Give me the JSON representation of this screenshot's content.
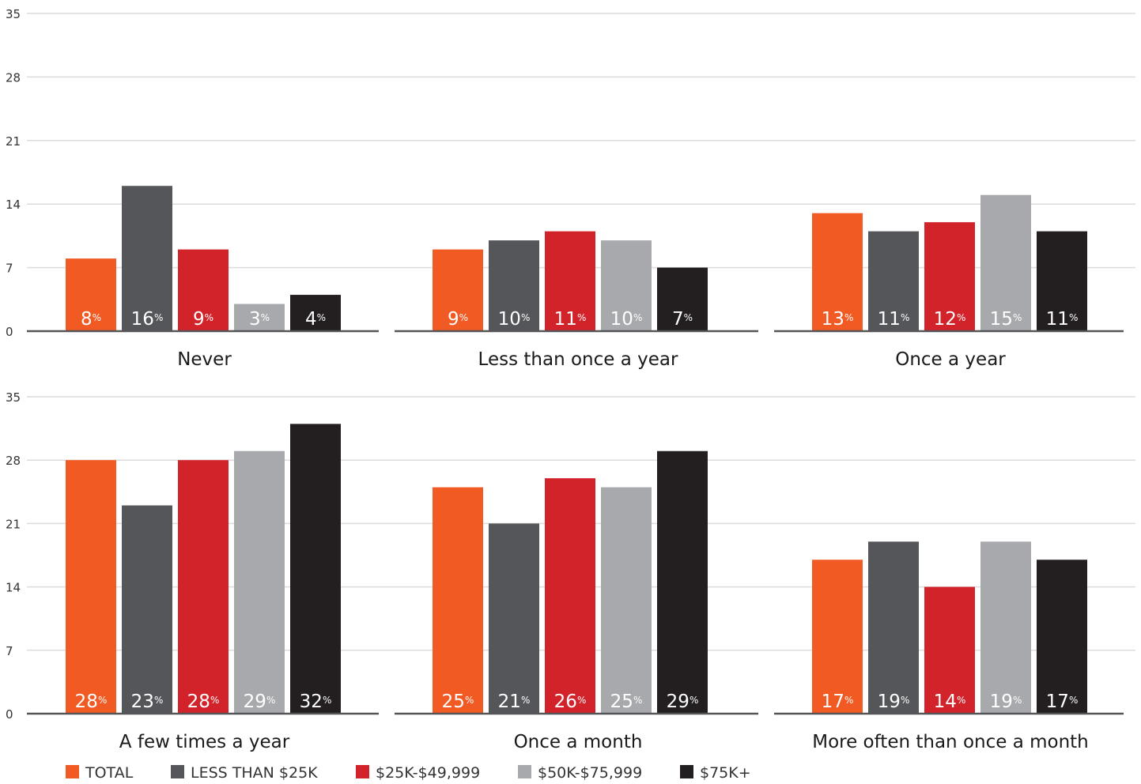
{
  "chart_data": {
    "type": "bar",
    "y_ticks": [
      "0",
      "7",
      "14",
      "21",
      "28",
      "35"
    ],
    "ylim": [
      0,
      35
    ],
    "grid": true,
    "value_suffix": "%",
    "legend_position": "bottom",
    "series": [
      {
        "name": "TOTAL",
        "color": "#f15a22"
      },
      {
        "name": "LESS THAN $25K",
        "color": "#54565a"
      },
      {
        "name": "$25K-$49,999",
        "color": "#d3232a"
      },
      {
        "name": "$50K-$75,999",
        "color": "#a7a9ac"
      },
      {
        "name": "$75K+",
        "color": "#231f20"
      }
    ],
    "groups": [
      {
        "label": "Never",
        "values": [
          8,
          16,
          9,
          3,
          4
        ]
      },
      {
        "label": "Less than once a year",
        "values": [
          9,
          10,
          11,
          10,
          7
        ]
      },
      {
        "label": "Once a year",
        "values": [
          13,
          11,
          12,
          15,
          11
        ]
      },
      {
        "label": "A few times a year",
        "values": [
          28,
          23,
          28,
          29,
          32
        ]
      },
      {
        "label": "Once a month",
        "values": [
          25,
          21,
          26,
          25,
          29
        ]
      },
      {
        "label": "More often than once a month",
        "values": [
          17,
          19,
          14,
          19,
          17
        ]
      }
    ]
  }
}
